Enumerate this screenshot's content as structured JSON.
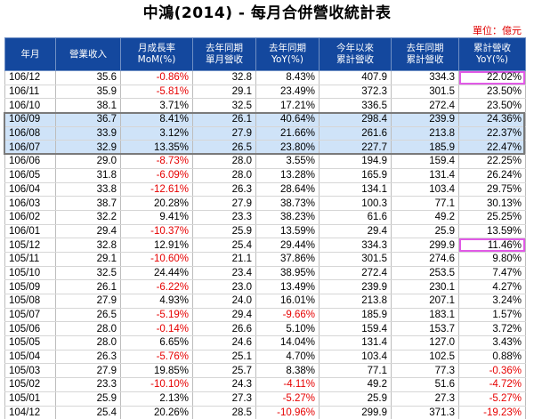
{
  "title": "中鴻(2014) - 每月合併營收統計表",
  "unit": "單位：億元",
  "columns": [
    "年月",
    "營業收入",
    "月成長率\nMoM(%)",
    "去年同期\n單月營收",
    "去年同期\nYoY(%)",
    "今年以來\n累計營收",
    "去年同期\n累計營收",
    "累計營收\nYoY(%)"
  ],
  "colors": {
    "header_bg": "#14489e",
    "negative": "#e60000",
    "highlight_row_bg": "#cfe3f8",
    "circle_mark": "#e15ae6"
  },
  "rows": [
    [
      "106/12",
      "35.6",
      "-0.86%",
      "32.8",
      "8.43%",
      "407.9",
      "334.3",
      "22.02%"
    ],
    [
      "106/11",
      "35.9",
      "-5.81%",
      "29.1",
      "23.49%",
      "372.3",
      "301.5",
      "23.50%"
    ],
    [
      "106/10",
      "38.1",
      "3.71%",
      "32.5",
      "17.21%",
      "336.5",
      "272.4",
      "23.50%"
    ],
    [
      "106/09",
      "36.7",
      "8.41%",
      "26.1",
      "40.64%",
      "298.4",
      "239.9",
      "24.36%"
    ],
    [
      "106/08",
      "33.9",
      "3.12%",
      "27.9",
      "21.66%",
      "261.6",
      "213.8",
      "22.37%"
    ],
    [
      "106/07",
      "32.9",
      "13.35%",
      "26.5",
      "23.80%",
      "227.7",
      "185.9",
      "22.47%"
    ],
    [
      "106/06",
      "29.0",
      "-8.73%",
      "28.0",
      "3.55%",
      "194.9",
      "159.4",
      "22.25%"
    ],
    [
      "106/05",
      "31.8",
      "-6.09%",
      "28.0",
      "13.28%",
      "165.9",
      "131.4",
      "26.24%"
    ],
    [
      "106/04",
      "33.8",
      "-12.61%",
      "26.3",
      "28.64%",
      "134.1",
      "103.4",
      "29.75%"
    ],
    [
      "106/03",
      "38.7",
      "20.28%",
      "27.9",
      "38.73%",
      "100.3",
      "77.1",
      "30.13%"
    ],
    [
      "106/02",
      "32.2",
      "9.41%",
      "23.3",
      "38.23%",
      "61.6",
      "49.2",
      "25.25%"
    ],
    [
      "106/01",
      "29.4",
      "-10.37%",
      "25.9",
      "13.59%",
      "29.4",
      "25.9",
      "13.59%"
    ],
    [
      "105/12",
      "32.8",
      "12.91%",
      "25.4",
      "29.44%",
      "334.3",
      "299.9",
      "11.46%"
    ],
    [
      "105/11",
      "29.1",
      "-10.60%",
      "21.1",
      "37.86%",
      "301.5",
      "274.6",
      "9.80%"
    ],
    [
      "105/10",
      "32.5",
      "24.44%",
      "23.4",
      "38.95%",
      "272.4",
      "253.5",
      "7.47%"
    ],
    [
      "105/09",
      "26.1",
      "-6.22%",
      "23.0",
      "13.49%",
      "239.9",
      "230.1",
      "4.27%"
    ],
    [
      "105/08",
      "27.9",
      "4.93%",
      "24.0",
      "16.01%",
      "213.8",
      "207.1",
      "3.24%"
    ],
    [
      "105/07",
      "26.5",
      "-5.19%",
      "29.4",
      "-9.66%",
      "185.9",
      "183.1",
      "1.57%"
    ],
    [
      "105/06",
      "28.0",
      "-0.14%",
      "26.6",
      "5.10%",
      "159.4",
      "153.7",
      "3.72%"
    ],
    [
      "105/05",
      "28.0",
      "6.65%",
      "24.6",
      "14.04%",
      "131.4",
      "127.0",
      "3.43%"
    ],
    [
      "105/04",
      "26.3",
      "-5.76%",
      "25.1",
      "4.70%",
      "103.4",
      "102.5",
      "0.88%"
    ],
    [
      "105/03",
      "27.9",
      "19.85%",
      "25.7",
      "8.38%",
      "77.1",
      "77.3",
      "-0.36%"
    ],
    [
      "105/02",
      "23.3",
      "-10.10%",
      "24.3",
      "-4.11%",
      "49.2",
      "51.6",
      "-4.72%"
    ],
    [
      "105/01",
      "25.9",
      "2.13%",
      "27.3",
      "-5.27%",
      "25.9",
      "27.3",
      "-5.27%"
    ],
    [
      "104/12",
      "25.4",
      "20.26%",
      "28.5",
      "-10.96%",
      "299.9",
      "371.3",
      "-19.23%"
    ]
  ]
}
